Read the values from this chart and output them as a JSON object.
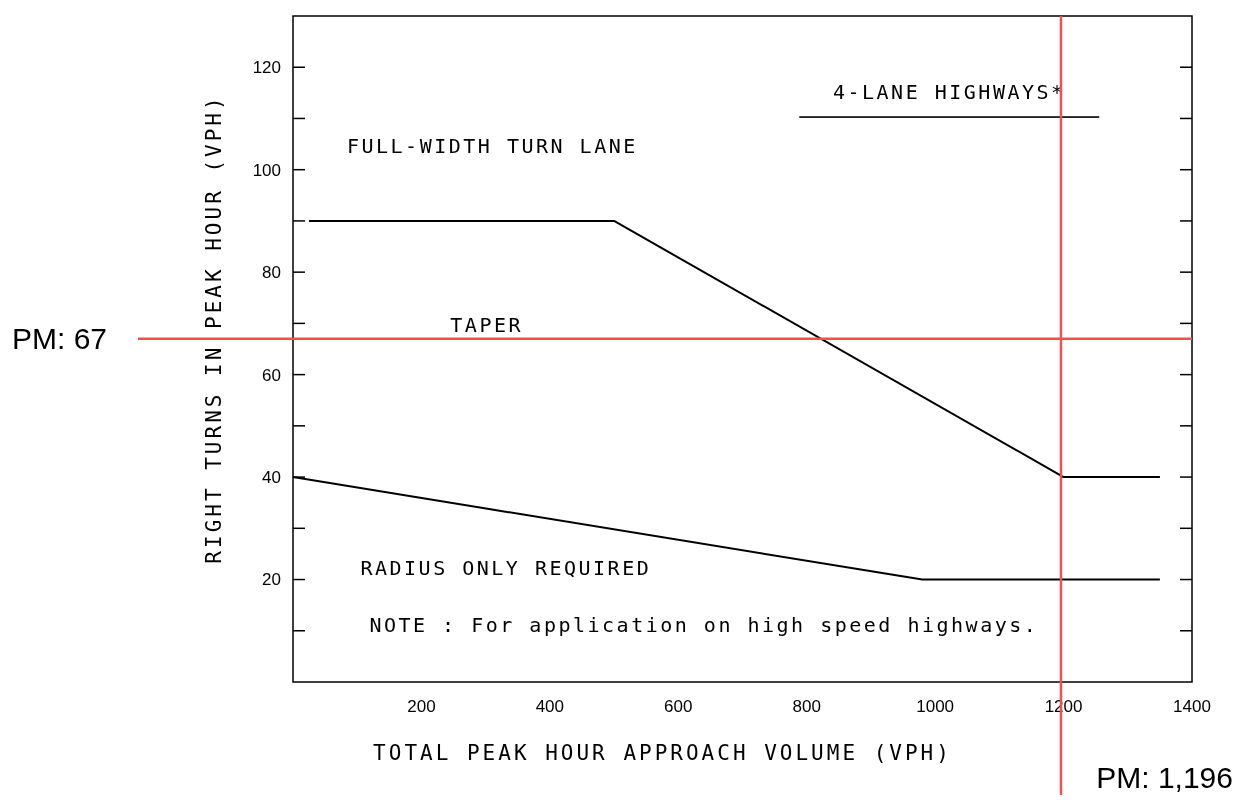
{
  "chart_data": {
    "type": "line",
    "xlabel": "TOTAL PEAK HOUR APPROACH VOLUME (VPH)",
    "ylabel": "RIGHT TURNS IN PEAK HOUR (VPH)",
    "xlim": [
      0,
      1400
    ],
    "ylim": [
      0,
      130
    ],
    "xticks": [
      200,
      400,
      600,
      800,
      1000,
      1200,
      1400
    ],
    "yticks": [
      {
        "value": 10,
        "label": null
      },
      20,
      {
        "value": 30,
        "label": null
      },
      40,
      {
        "value": 50,
        "label": null
      },
      60,
      {
        "value": 70,
        "label": null
      },
      80,
      {
        "value": 90,
        "label": null
      },
      100,
      {
        "value": 110,
        "label": null
      },
      120
    ],
    "series": [
      {
        "color": "#000000",
        "x": [
          25,
          500,
          1200,
          1350
        ],
        "values": [
          90,
          90,
          40,
          40
        ]
      },
      {
        "color": "#000000",
        "x": [
          0,
          980,
          1350
        ],
        "values": [
          40,
          20,
          20
        ]
      }
    ],
    "ref_lines": [
      {
        "axis": "y",
        "value": 67,
        "label": "PM: 67",
        "color": "#f05050"
      },
      {
        "axis": "x",
        "value": 1196,
        "label": "PM: 1,196",
        "color": "#f05050"
      }
    ],
    "annotations": [
      "4-LANE HIGHWAYS*",
      "FULL-WIDTH TURN LANE",
      "TAPER",
      "RADIUS ONLY REQUIRED",
      "NOTE : For application on high speed highways."
    ],
    "grid": false,
    "marker": "none",
    "line_style": "solid"
  }
}
